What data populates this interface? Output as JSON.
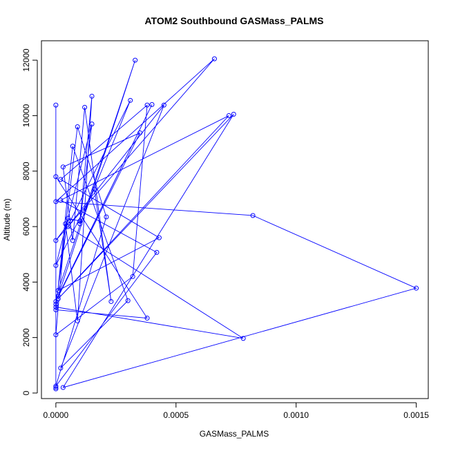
{
  "chart_data": {
    "type": "line",
    "title": "ATOM2 Southbound GASMass_PALMS",
    "xlabel": "GASMass_PALMS",
    "ylabel": "Altitude (m)",
    "xlim": [
      -6e-05,
      0.00155
    ],
    "ylim": [
      -200,
      12700
    ],
    "xticks": [
      0,
      0.0005,
      0.001,
      0.0015
    ],
    "xtick_labels": [
      "0.0000",
      "0.0005",
      "0.0010",
      "0.0015"
    ],
    "yticks": [
      0,
      2000,
      4000,
      6000,
      8000,
      10000,
      12000
    ],
    "ytick_labels": [
      "0",
      "2000",
      "4000",
      "6000",
      "8000",
      "10000",
      "12000"
    ],
    "grid": false,
    "series": [
      {
        "color": "#0000ff",
        "marker": "open-circle",
        "points": [
          [
            0.0,
            150
          ],
          [
            0.0,
            10380
          ],
          [
            0.0,
            3200
          ],
          [
            5e-05,
            6300
          ],
          [
            0.0001,
            6200
          ],
          [
            0.00015,
            10700
          ],
          [
            9e-05,
            2600
          ],
          [
            4e-05,
            6100
          ],
          [
            0.0,
            2100
          ],
          [
            0.00032,
            4200
          ],
          [
            0.00038,
            10380
          ],
          [
            2e-05,
            7700
          ],
          [
            0.00043,
            5600
          ],
          [
            1e-05,
            3700
          ],
          [
            0.00033,
            12000
          ],
          [
            1e-05,
            3500
          ],
          [
            0.0004,
            10400
          ],
          [
            0.0,
            3300
          ],
          [
            0.00035,
            9380
          ],
          [
            3e-05,
            8150
          ],
          [
            7e-05,
            5500
          ],
          [
            0.00012,
            10300
          ],
          [
            0.00023,
            3300
          ],
          [
            0.00016,
            7350
          ],
          [
            0.0,
            4600
          ],
          [
            0.00015,
            9700
          ],
          [
            0.0001,
            6100
          ],
          [
            0.00031,
            10550
          ],
          [
            6e-05,
            6200
          ],
          [
            0.0,
            5500
          ],
          [
            0.00066,
            12050
          ],
          [
            0.0,
            6900
          ],
          [
            0.00082,
            6400
          ],
          [
            0.0015,
            3780
          ],
          [
            3e-05,
            200
          ],
          [
            0.00074,
            10050
          ],
          [
            1e-05,
            3400
          ],
          [
            0.00072,
            10000
          ],
          [
            2e-05,
            6950
          ],
          [
            0.00042,
            5070
          ],
          [
            0.0,
            250
          ],
          [
            0.00021,
            6350
          ],
          [
            9e-05,
            9600
          ],
          [
            0.0,
            3100
          ],
          [
            0.00078,
            1970
          ],
          [
            5e-05,
            6000
          ],
          [
            0.00045,
            10380
          ],
          [
            2e-05,
            900
          ],
          [
            0.0003,
            3330
          ],
          [
            7e-05,
            8900
          ],
          [
            0.0,
            3000
          ],
          [
            0.00038,
            2700
          ],
          [
            0.0,
            7800
          ],
          [
            0.0,
            200
          ]
        ]
      }
    ]
  }
}
